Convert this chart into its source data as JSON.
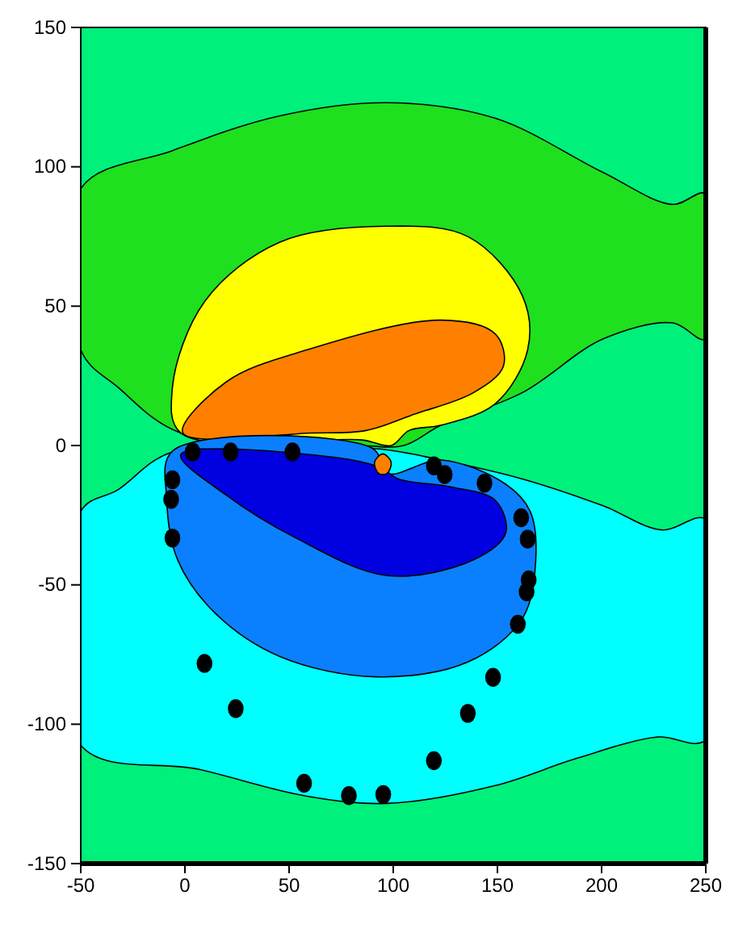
{
  "chart_data": {
    "type": "scatter",
    "xlim": [
      -50,
      250
    ],
    "ylim": [
      -150,
      150
    ],
    "xticks": [
      -50,
      0,
      50,
      100,
      150,
      200,
      250
    ],
    "yticks": [
      -150,
      -100,
      -50,
      0,
      50,
      100,
      150
    ],
    "series": [
      {
        "type": "area",
        "color": "#1ee01e",
        "x": [
          -50,
          -6,
          45.6,
          97.3,
          149,
          200.6,
          234,
          250,
          250,
          234,
          200.6,
          162,
          123,
          105,
          85,
          -2,
          -32,
          -50
        ],
        "values": [
          92.2,
          105.8,
          118.3,
          123,
          117.4,
          98,
          86.5,
          90.3,
          38.2,
          44,
          38.2,
          19,
          7.3,
          0,
          0,
          4.5,
          20.8,
          34.3
        ]
      },
      {
        "type": "area",
        "color": "#ffff00",
        "x": [
          -2,
          -6,
          9.5,
          45.6,
          97.3,
          136,
          162,
          164.5,
          149,
          123,
          107.6,
          99,
          85
        ],
        "values": [
          4.5,
          20.8,
          51.7,
          73,
          78.7,
          74.9,
          53.7,
          34.3,
          15,
          7.3,
          5.4,
          0,
          2
        ]
      },
      {
        "type": "area",
        "color": "#ff8000",
        "x": [
          -1,
          19.8,
          58.5,
          123,
          149,
          152.9,
          138.6,
          110,
          87,
          61
        ],
        "values": [
          4.5,
          22.8,
          34.3,
          45,
          40,
          28.5,
          19,
          11.2,
          5.4,
          4.5
        ]
      },
      {
        "type": "area",
        "color": "#00ffff",
        "x": [
          -50,
          -32,
          -6,
          90,
          123,
          162,
          200.6,
          229,
          250,
          250,
          226.5,
          187.8,
          149,
          97.3,
          58.5,
          6.8,
          -50
        ],
        "values": [
          -23.6,
          -15.8,
          -2.3,
          -1,
          -5.2,
          -12,
          -21.6,
          -30.3,
          -26.5,
          -105.6,
          -104.6,
          -112.3,
          -122,
          -128.4,
          -125.8,
          -116.2,
          -107.5
        ]
      },
      {
        "type": "area",
        "color": "#0a80ff",
        "x": [
          -6,
          -8.7,
          -3.5,
          14.6,
          45.6,
          92,
          136,
          162,
          168.4,
          165.7,
          154,
          123,
          97.3,
          90
        ],
        "values": [
          -2,
          -19.7,
          -41,
          -60.2,
          -75.7,
          -83,
          -77.6,
          -62,
          -41,
          -23.6,
          -13.9,
          -5.2,
          -10,
          -1
        ]
      },
      {
        "type": "area",
        "color": "#0000e0",
        "x": [
          -2,
          19.8,
          53.3,
          97.3,
          138.6,
          154,
          149,
          128,
          102.5,
          94,
          71.5
        ],
        "values": [
          -3.3,
          -17.8,
          -33.2,
          -46.7,
          -41,
          -31.3,
          -19.7,
          -14.9,
          -12,
          -8,
          -4.2
        ]
      },
      {
        "type": "area",
        "color": "#ff8000",
        "x": [
          91,
          95,
          99,
          97,
          93
        ],
        "values": [
          -6,
          -3,
          -6,
          -10,
          -10
        ]
      },
      {
        "color": "#000000",
        "marker": "circle",
        "x": [
          3.7,
          21.9,
          51.6,
          -6,
          -6.6,
          -6,
          9.4,
          24.4,
          57.2,
          78.7,
          95.2,
          119.5,
          135.8,
          147.9,
          159.8,
          164,
          165,
          164.5,
          161.4,
          143.8,
          124.7,
          119.5
        ],
        "values": [
          -2.3,
          -2.3,
          -2.3,
          -12.3,
          -19.3,
          -33.2,
          -78.2,
          -94.4,
          -121.2,
          -125.6,
          -125.2,
          -113.1,
          -96.1,
          -83.2,
          -64.1,
          -52.5,
          -48.2,
          -33.6,
          -25.9,
          -13.5,
          -10.4,
          -7.3
        ]
      }
    ]
  }
}
